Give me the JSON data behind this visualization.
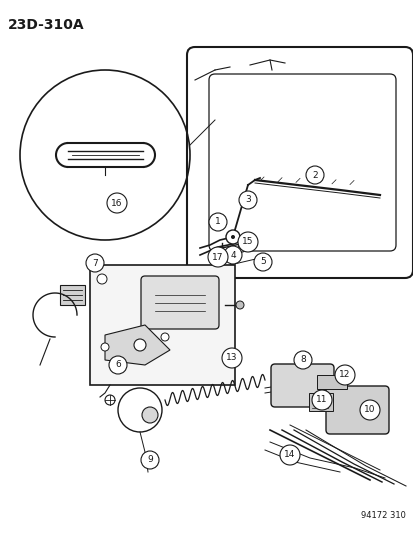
{
  "title": "23D-310A",
  "bg_color": "#ffffff",
  "line_color": "#1a1a1a",
  "part_number_stamp": "94172 310",
  "fig_width": 4.14,
  "fig_height": 5.33,
  "dpi": 100
}
